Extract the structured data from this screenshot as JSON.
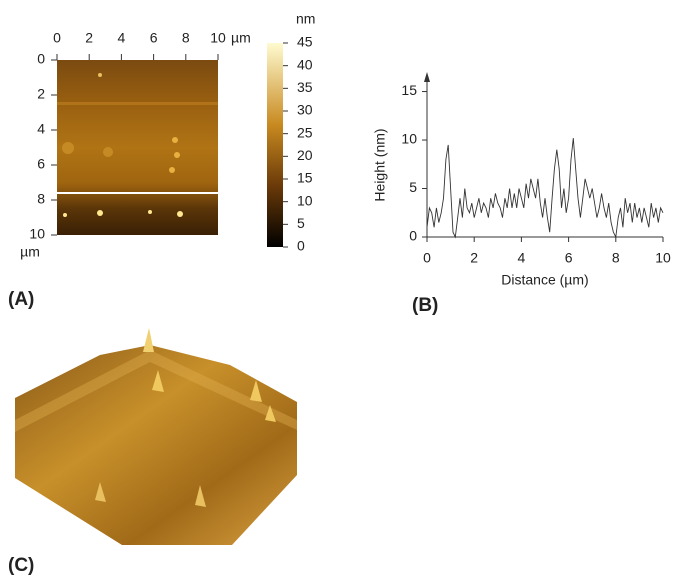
{
  "chart_data": [
    {
      "type": "heatmap",
      "panel_label": "(A)",
      "x_unit": "µm",
      "y_unit": "µm",
      "xlim": [
        0,
        10
      ],
      "xticks": [
        0,
        2,
        4,
        6,
        8,
        10
      ],
      "ylim": [
        10,
        0
      ],
      "yticks": [
        0,
        2,
        4,
        6,
        8,
        10
      ],
      "profile_y": 7.6,
      "colorbar": {
        "label": "nm",
        "lim": [
          0,
          45
        ],
        "ticks": [
          0,
          5,
          10,
          15,
          20,
          25,
          30,
          35,
          40,
          45
        ]
      }
    },
    {
      "type": "line",
      "panel_label": "(B)",
      "xlabel": "Distance (µm)",
      "ylabel": "Height (nm)",
      "xlim": [
        0,
        10
      ],
      "xticks": [
        0,
        2,
        4,
        6,
        8,
        10
      ],
      "ylim": [
        0,
        16.5
      ],
      "yticks": [
        0,
        5,
        10,
        15
      ],
      "color": "#333",
      "x": [
        0,
        0.1,
        0.2,
        0.3,
        0.4,
        0.5,
        0.6,
        0.7,
        0.8,
        0.9,
        1,
        1.1,
        1.2,
        1.3,
        1.4,
        1.5,
        1.6,
        1.7,
        1.8,
        1.9,
        2,
        2.1,
        2.2,
        2.3,
        2.4,
        2.5,
        2.6,
        2.7,
        2.8,
        2.9,
        3,
        3.1,
        3.2,
        3.3,
        3.4,
        3.5,
        3.6,
        3.7,
        3.8,
        3.9,
        4,
        4.1,
        4.2,
        4.3,
        4.4,
        4.5,
        4.6,
        4.7,
        4.8,
        4.9,
        5,
        5.1,
        5.2,
        5.3,
        5.4,
        5.5,
        5.6,
        5.7,
        5.8,
        5.9,
        6,
        6.1,
        6.2,
        6.3,
        6.4,
        6.5,
        6.6,
        6.7,
        6.8,
        6.9,
        7,
        7.1,
        7.2,
        7.3,
        7.4,
        7.5,
        7.6,
        7.7,
        7.8,
        7.9,
        8,
        8.1,
        8.2,
        8.3,
        8.4,
        8.5,
        8.6,
        8.7,
        8.8,
        8.9,
        9,
        9.1,
        9.2,
        9.3,
        9.4,
        9.5,
        9.6,
        9.7,
        9.8,
        9.9,
        10
      ],
      "values": [
        1,
        3,
        2.5,
        1,
        3,
        1.5,
        2.5,
        4,
        8,
        9.5,
        5,
        0.5,
        0,
        2,
        4,
        2,
        5,
        3,
        2.5,
        3.5,
        2,
        3,
        4,
        2.5,
        3.5,
        3,
        2,
        4,
        3,
        4.5,
        3.5,
        3,
        2,
        4,
        3,
        5,
        3,
        4.5,
        3,
        5,
        4,
        3,
        5.5,
        4,
        6,
        5,
        4,
        6,
        3.5,
        2,
        4,
        2,
        0.5,
        4,
        7,
        9,
        7,
        3,
        5,
        2.5,
        4,
        8,
        10.2,
        7,
        4,
        2,
        4,
        6,
        5,
        4,
        5,
        3.5,
        2,
        3,
        4.5,
        3,
        2,
        3.5,
        1.5,
        0.5,
        0,
        2,
        3,
        1,
        4,
        2.5,
        3.5,
        1.5,
        3.5,
        2,
        3,
        1.5,
        3,
        2,
        1,
        3.5,
        2,
        3,
        1.5,
        3,
        2.5
      ]
    },
    {
      "type": "surface",
      "panel_label": "(C)"
    }
  ]
}
